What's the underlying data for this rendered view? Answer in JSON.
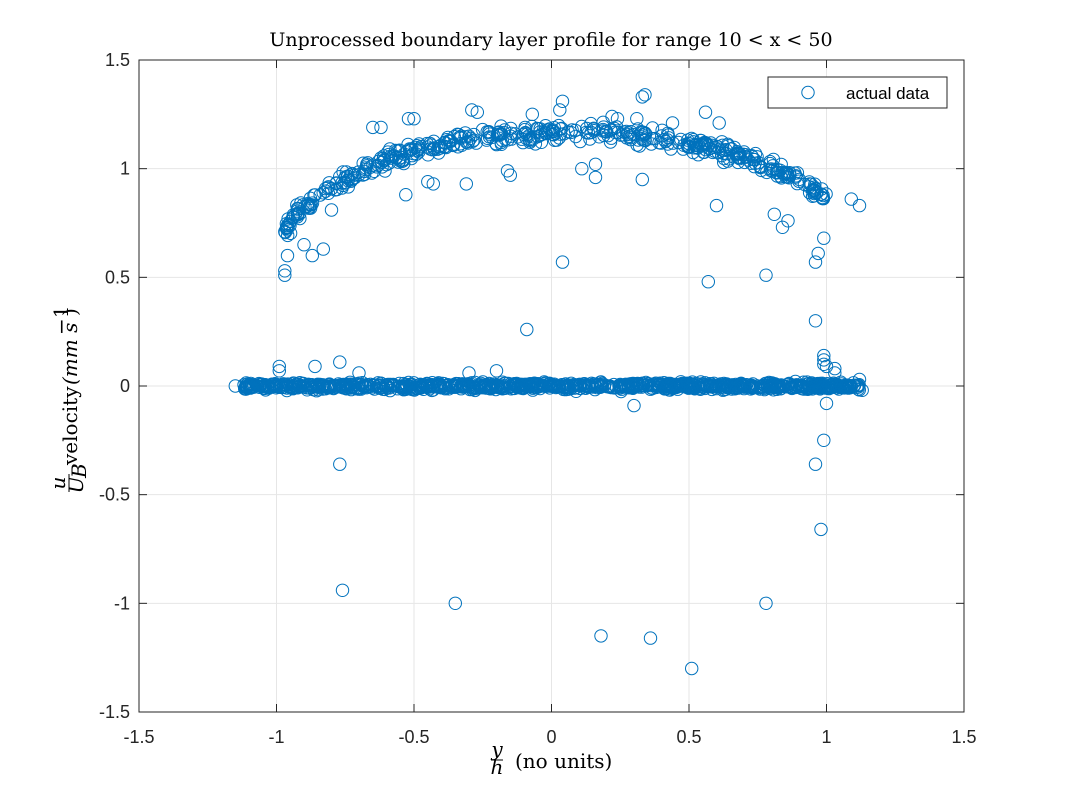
{
  "chart_data": {
    "type": "scatter",
    "title": "Unprocessed boundary layer profile for range 10 < x < 50",
    "xlabel": "y/h (no units)",
    "xlabel_parts": {
      "num": "y",
      "den": "h",
      "rest": "(no units)"
    },
    "ylabel": "u/U_B velocity (mm s^-1)",
    "ylabel_parts": {
      "num": "u",
      "den": "U",
      "den_sub": "B",
      "word": "velocity",
      "unit": "(mm s",
      "sup": "−1",
      "close": ")"
    },
    "xlim": [
      -1.5,
      1.5
    ],
    "ylim": [
      -1.5,
      1.5
    ],
    "xticks": [
      -1.5,
      -1,
      -0.5,
      0,
      0.5,
      1,
      1.5
    ],
    "xtick_labels": [
      "-1.5",
      "-1",
      "-0.5",
      "0",
      "0.5",
      "1",
      "1.5"
    ],
    "yticks": [
      -1.5,
      -1,
      -0.5,
      0,
      0.5,
      1,
      1.5
    ],
    "ytick_labels": [
      "-1.5",
      "-1",
      "-0.5",
      "0",
      "0.5",
      "1",
      "1.5"
    ],
    "grid": true,
    "legend_position": "top-right",
    "marker_color": "#0072BD",
    "series": [
      {
        "name": "actual data",
        "marker": "open-circle",
        "outliers": [
          [
            -0.77,
            -0.36
          ],
          [
            -0.76,
            -0.94
          ],
          [
            -0.35,
            -1.0
          ],
          [
            0.18,
            -1.15
          ],
          [
            0.36,
            -1.16
          ],
          [
            0.51,
            -1.3
          ],
          [
            0.78,
            -1.0
          ],
          [
            0.96,
            -0.36
          ],
          [
            0.98,
            -0.66
          ],
          [
            0.99,
            -0.25
          ],
          [
            0.04,
            0.57
          ],
          [
            -0.09,
            0.26
          ],
          [
            0.57,
            0.48
          ],
          [
            0.78,
            0.51
          ],
          [
            0.96,
            0.3
          ],
          [
            0.99,
            0.14
          ],
          [
            0.99,
            0.12
          ],
          [
            0.99,
            0.1
          ],
          [
            1.0,
            0.09
          ],
          [
            -0.77,
            0.11
          ],
          [
            -0.86,
            0.09
          ],
          [
            -0.99,
            0.09
          ],
          [
            -0.99,
            0.07
          ],
          [
            -0.3,
            0.06
          ],
          [
            -0.2,
            0.07
          ],
          [
            0.3,
            -0.09
          ],
          [
            -0.7,
            0.06
          ],
          [
            1.0,
            -0.08
          ],
          [
            1.03,
            0.08
          ],
          [
            1.03,
            0.06
          ],
          [
            -1.15,
            0.0
          ],
          [
            1.12,
            0.03
          ],
          [
            1.13,
            -0.02
          ],
          [
            1.09,
            0.86
          ],
          [
            1.12,
            0.83
          ],
          [
            0.56,
            1.26
          ],
          [
            0.34,
            1.34
          ],
          [
            0.33,
            1.33
          ],
          [
            0.04,
            1.31
          ],
          [
            -0.27,
            1.26
          ],
          [
            -0.29,
            1.27
          ],
          [
            -0.5,
            1.23
          ],
          [
            -0.52,
            1.23
          ],
          [
            -0.62,
            1.19
          ],
          [
            -0.65,
            1.19
          ],
          [
            0.61,
            1.21
          ],
          [
            0.24,
            1.23
          ],
          [
            0.22,
            1.24
          ],
          [
            0.31,
            1.23
          ],
          [
            0.44,
            1.21
          ],
          [
            0.03,
            1.27
          ],
          [
            -0.07,
            1.25
          ],
          [
            -0.97,
            0.51
          ],
          [
            -0.97,
            0.53
          ],
          [
            -0.96,
            0.6
          ],
          [
            -0.87,
            0.6
          ],
          [
            -0.83,
            0.63
          ],
          [
            -0.9,
            0.65
          ],
          [
            0.97,
            0.61
          ],
          [
            0.96,
            0.57
          ],
          [
            0.99,
            0.68
          ],
          [
            -0.53,
            0.88
          ],
          [
            -0.31,
            0.93
          ],
          [
            -0.43,
            0.93
          ],
          [
            -0.45,
            0.94
          ],
          [
            0.33,
            0.95
          ],
          [
            0.16,
            0.96
          ],
          [
            0.11,
            1.0
          ],
          [
            0.6,
            0.83
          ],
          [
            0.81,
            0.79
          ],
          [
            -0.8,
            0.81
          ],
          [
            -0.15,
            0.97
          ],
          [
            -0.16,
            0.99
          ],
          [
            0.16,
            1.02
          ],
          [
            0.84,
            0.73
          ],
          [
            0.86,
            0.76
          ]
        ]
      }
    ]
  }
}
